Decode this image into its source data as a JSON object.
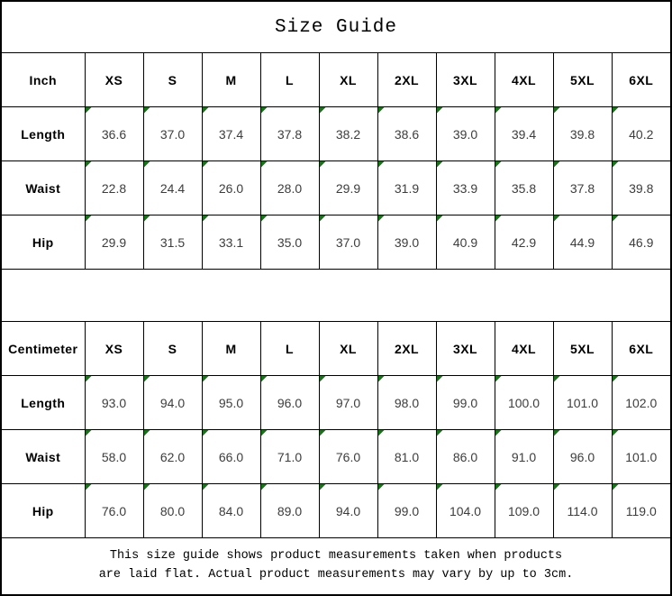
{
  "title": "Size Guide",
  "colors": {
    "marker": "#0a7e0a",
    "grid": "#000000",
    "value_text": "#3d3d3d"
  },
  "chart_data": [
    {
      "type": "table",
      "title": "Size Guide",
      "unit": "Inch",
      "columns": [
        "Inch",
        "XS",
        "S",
        "M",
        "L",
        "XL",
        "2XL",
        "3XL",
        "4XL",
        "5XL",
        "6XL"
      ],
      "rows": [
        [
          "Length",
          "36.6",
          "37.0",
          "37.4",
          "37.8",
          "38.2",
          "38.6",
          "39.0",
          "39.4",
          "39.8",
          "40.2"
        ],
        [
          "Waist",
          "22.8",
          "24.4",
          "26.0",
          "28.0",
          "29.9",
          "31.9",
          "33.9",
          "35.8",
          "37.8",
          "39.8"
        ],
        [
          "Hip",
          "29.9",
          "31.5",
          "33.1",
          "35.0",
          "37.0",
          "39.0",
          "40.9",
          "42.9",
          "44.9",
          "46.9"
        ]
      ]
    },
    {
      "type": "table",
      "title": "Size Guide",
      "unit": "Centimeter",
      "columns": [
        "Centimeter",
        "XS",
        "S",
        "M",
        "L",
        "XL",
        "2XL",
        "3XL",
        "4XL",
        "5XL",
        "6XL"
      ],
      "rows": [
        [
          "Length",
          "93.0",
          "94.0",
          "95.0",
          "96.0",
          "97.0",
          "98.0",
          "99.0",
          "100.0",
          "101.0",
          "102.0"
        ],
        [
          "Waist",
          "58.0",
          "62.0",
          "66.0",
          "71.0",
          "76.0",
          "81.0",
          "86.0",
          "91.0",
          "96.0",
          "101.0"
        ],
        [
          "Hip",
          "76.0",
          "80.0",
          "84.0",
          "89.0",
          "94.0",
          "99.0",
          "104.0",
          "109.0",
          "114.0",
          "119.0"
        ]
      ]
    }
  ],
  "footer": {
    "line1": "This size guide shows product measurements taken when products",
    "line2": "are laid flat. Actual product measurements may vary by up to 3cm."
  }
}
